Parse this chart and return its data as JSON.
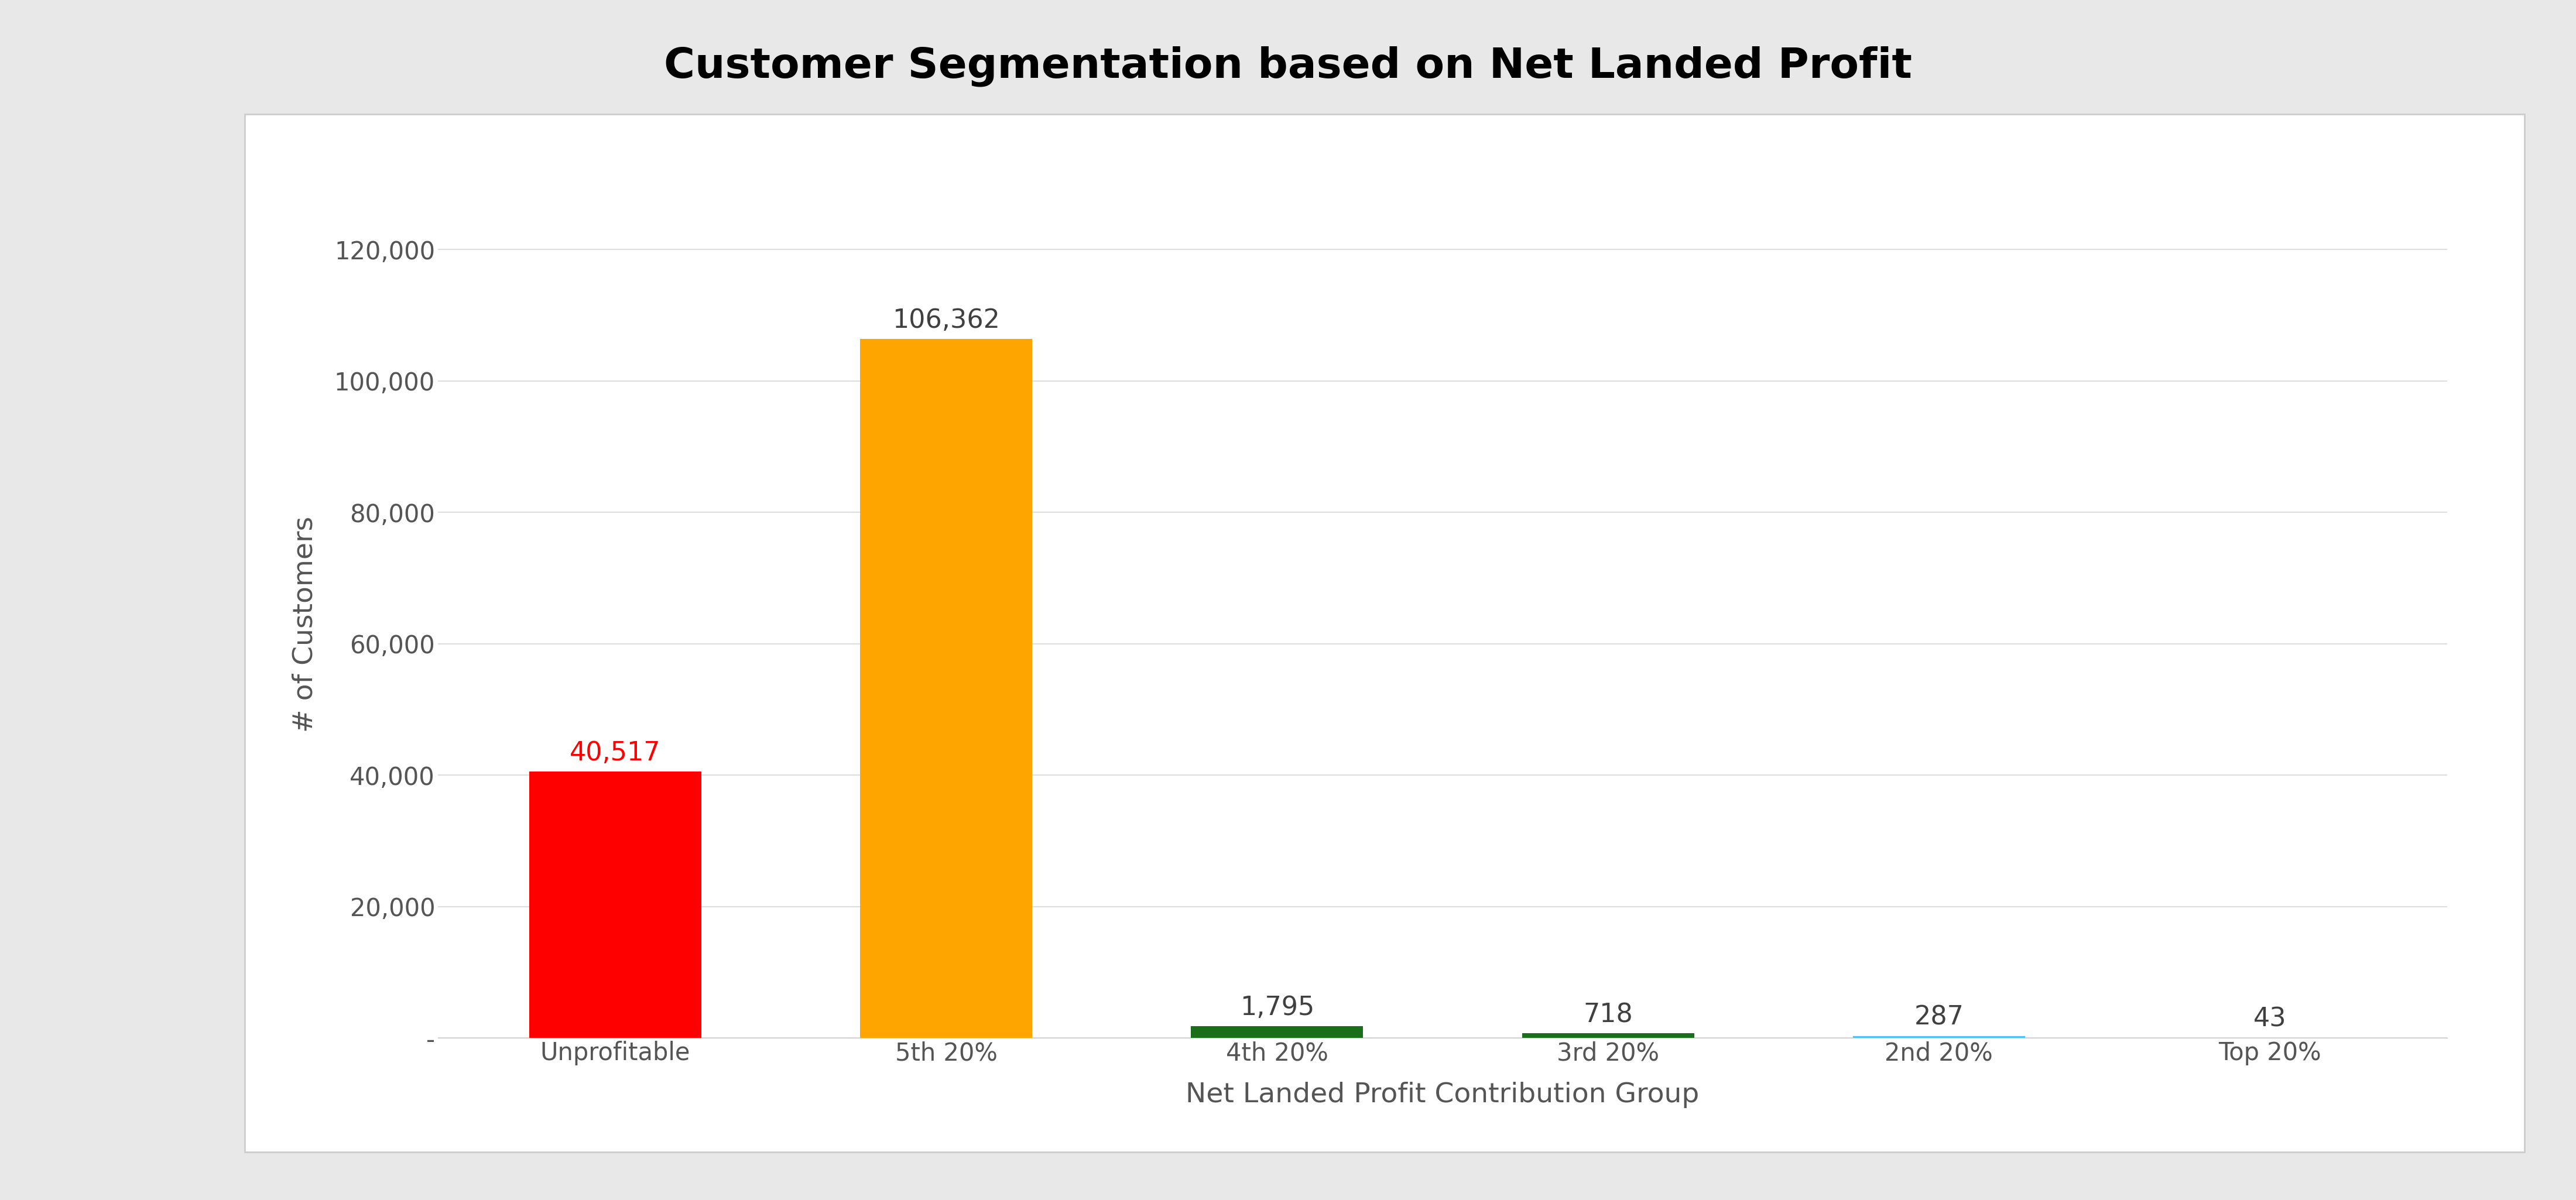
{
  "title": "Customer Segmentation based on Net Landed Profit",
  "categories": [
    "Unprofitable",
    "5th 20%",
    "4th 20%",
    "3rd 20%",
    "2nd 20%",
    "Top 20%"
  ],
  "values": [
    40517,
    106362,
    1795,
    718,
    287,
    43
  ],
  "bar_colors": [
    "#FF0000",
    "#FFA500",
    "#1a6e1a",
    "#1a6e1a",
    "#4FC3F7",
    "#c8c8c8"
  ],
  "label_colors": [
    "#FF0000",
    "#404040",
    "#404040",
    "#404040",
    "#404040",
    "#404040"
  ],
  "xlabel": "Net Landed Profit Contribution Group",
  "ylabel": "# of Customers",
  "ylim": [
    0,
    126000
  ],
  "yticks": [
    0,
    20000,
    40000,
    60000,
    80000,
    100000,
    120000
  ],
  "ytick_labels": [
    "-",
    "20,000",
    "40,000",
    "60,000",
    "80,000",
    "100,000",
    "120,000"
  ],
  "chart_background": "#FFFFFF",
  "outer_background": "#E8E8E8",
  "panel_border_color": "#CCCCCC",
  "title_fontsize": 52,
  "axis_label_fontsize": 34,
  "tick_fontsize": 30,
  "bar_label_fontsize": 32,
  "grid_color": "#DDDDDD",
  "tick_color": "#555555",
  "bar_width": 0.52
}
